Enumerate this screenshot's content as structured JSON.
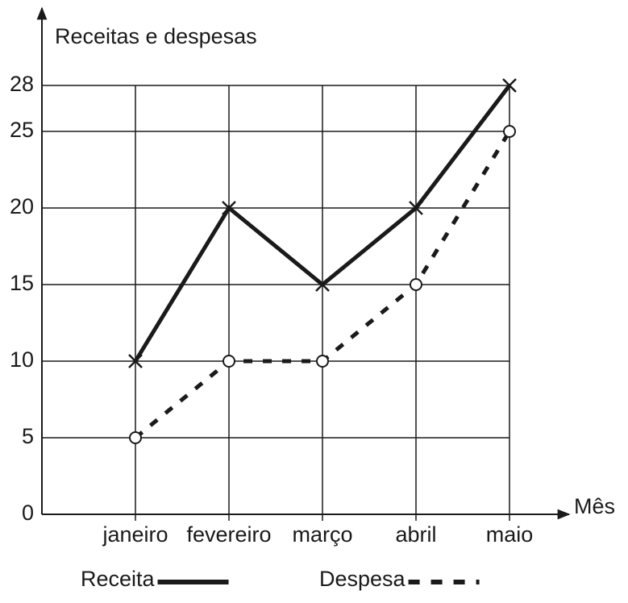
{
  "chart_data": {
    "type": "line",
    "y_label": "Receitas e despesas",
    "x_label": "Mês",
    "categories": [
      "janeiro",
      "fevereiro",
      "março",
      "abril",
      "maio"
    ],
    "series": [
      {
        "name": "Receita",
        "color": "#1a1a1a",
        "linestyle": "solid",
        "marker": "x",
        "values": [
          10,
          20,
          15,
          20,
          28
        ]
      },
      {
        "name": "Despesa",
        "color": "#1a1a1a",
        "linestyle": "dashed",
        "marker": "o",
        "values": [
          5,
          10,
          10,
          15,
          25
        ]
      }
    ],
    "ylim": [
      0,
      28
    ],
    "yticks": [
      0,
      5,
      10,
      15,
      20,
      25,
      28
    ],
    "grid": true,
    "legend": "bottom"
  }
}
